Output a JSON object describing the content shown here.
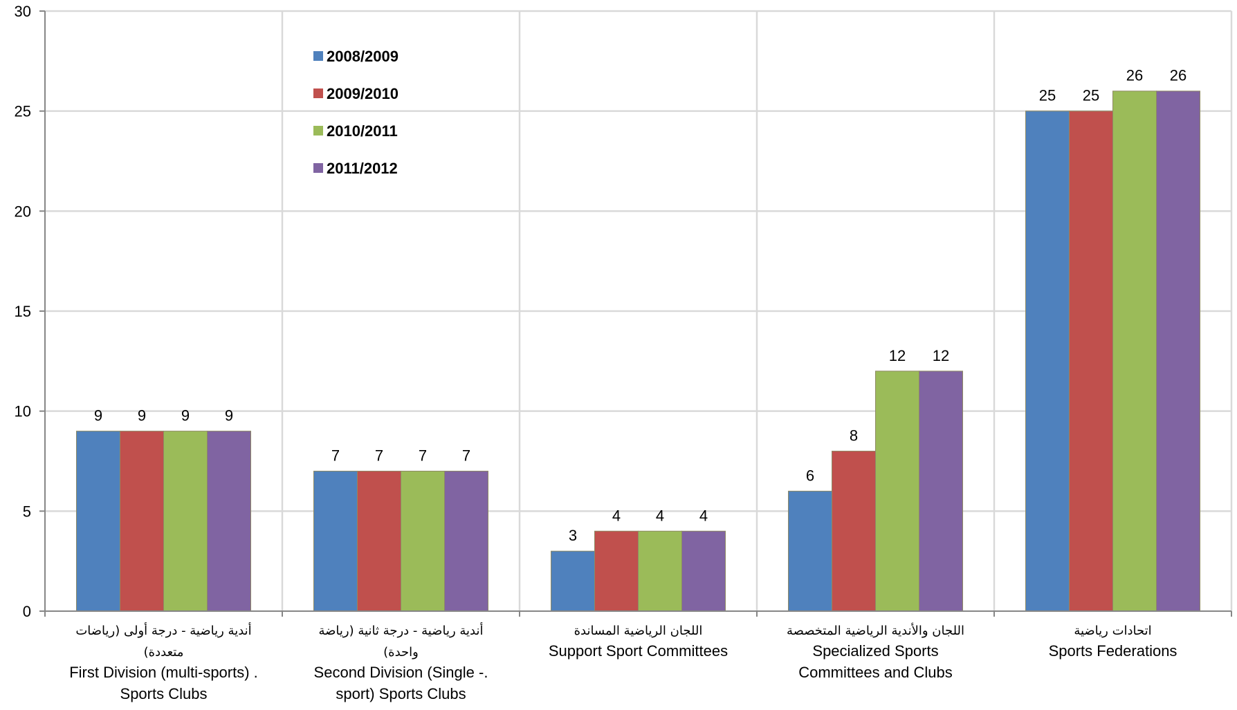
{
  "chart_data": {
    "type": "bar",
    "categories": [
      {
        "ar_lines": [
          "أندية رياضية - درجة أولى (رياضات",
          "متعددة)"
        ],
        "en_lines": [
          "First Division (multi-sports) .",
          "Sports Clubs"
        ]
      },
      {
        "ar_lines": [
          "أندية رياضية - درجة ثانية (رياضة",
          "واحدة)"
        ],
        "en_lines": [
          "Second Division (Single -.",
          "sport) Sports Clubs"
        ]
      },
      {
        "ar_lines": [
          "اللجان الرياضية المساندة"
        ],
        "en_lines": [
          "Support Sport Committees"
        ]
      },
      {
        "ar_lines": [
          "اللجان والأندية الرياضية المتخصصة"
        ],
        "en_lines": [
          "Specialized Sports",
          "Committees and Clubs"
        ]
      },
      {
        "ar_lines": [
          "اتحادات رياضية"
        ],
        "en_lines": [
          "Sports Federations"
        ]
      }
    ],
    "series": [
      {
        "name": "2008/2009",
        "color": "#4F81BD",
        "values": [
          9,
          7,
          3,
          6,
          25
        ]
      },
      {
        "name": "2009/2010",
        "color": "#C0504D",
        "values": [
          9,
          7,
          4,
          8,
          25
        ]
      },
      {
        "name": "2010/2011",
        "color": "#9BBB59",
        "values": [
          9,
          7,
          4,
          12,
          26
        ]
      },
      {
        "name": "2011/2012",
        "color": "#8064A2",
        "values": [
          9,
          7,
          4,
          12,
          26
        ]
      }
    ],
    "yticks": [
      "0",
      "5",
      "10",
      "15",
      "20",
      "25",
      "30"
    ],
    "ylim": [
      0,
      30
    ],
    "grid": true,
    "legend_position": "top-left-inside"
  }
}
